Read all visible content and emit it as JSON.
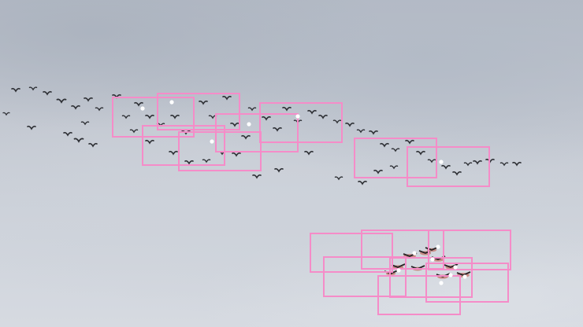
{
  "scene": {
    "description_visible_text": "",
    "box_color": "#f58cc8",
    "bird_color": "#2e3035",
    "keypoint_color": "#ffffff"
  }
}
